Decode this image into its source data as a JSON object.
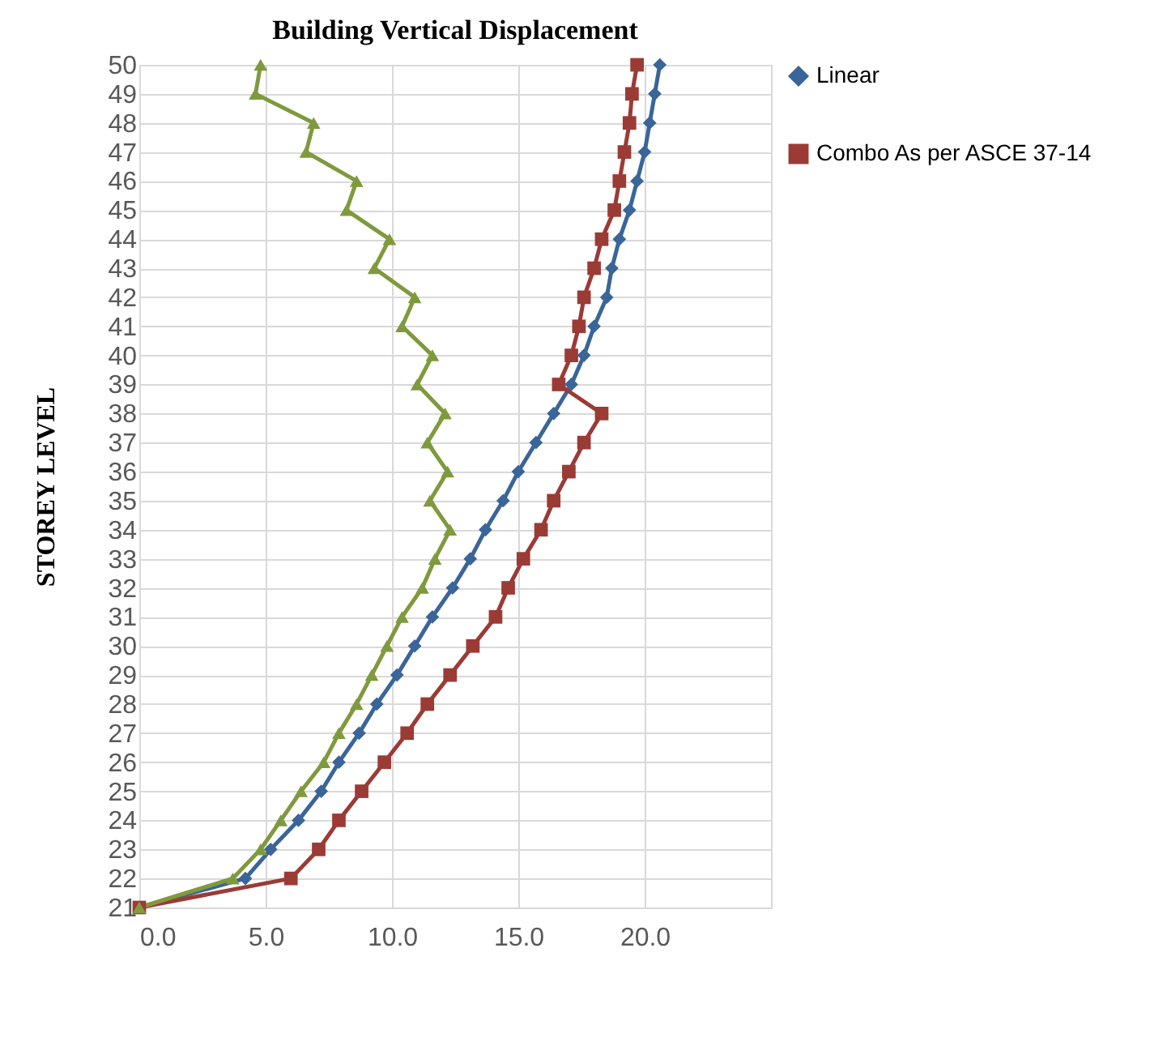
{
  "chart_data": {
    "type": "line",
    "orientation": "horizontal",
    "title": "Building Vertical Displacement",
    "ylabel": "STOREY LEVEL",
    "categories": [
      "50",
      "49",
      "48",
      "47",
      "46",
      "45",
      "44",
      "43",
      "42",
      "41",
      "40",
      "39",
      "38",
      "37",
      "36",
      "35",
      "34",
      "33",
      "32",
      "31",
      "30",
      "29",
      "28",
      "27",
      "26",
      "25",
      "24",
      "23",
      "22",
      "21"
    ],
    "series": [
      {
        "name": "Linear",
        "color": "#3a6598",
        "marker": "diamond",
        "values": [
          20.6,
          20.4,
          20.2,
          20.0,
          19.7,
          19.4,
          19.0,
          18.7,
          18.5,
          18.0,
          17.6,
          17.1,
          16.4,
          15.7,
          15.0,
          14.4,
          13.7,
          13.1,
          12.4,
          11.6,
          10.9,
          10.2,
          9.4,
          8.7,
          7.9,
          7.2,
          6.3,
          5.2,
          4.2,
          0
        ]
      },
      {
        "name": "Combo As per ASCE 37-14",
        "color": "#9b3b36",
        "marker": "square",
        "values": [
          19.7,
          19.5,
          19.4,
          19.2,
          19.0,
          18.8,
          18.3,
          18.0,
          17.6,
          17.4,
          17.1,
          16.6,
          18.3,
          17.6,
          17.0,
          16.4,
          15.9,
          15.2,
          14.6,
          14.1,
          13.2,
          12.3,
          11.4,
          10.6,
          9.7,
          8.8,
          7.9,
          7.1,
          6.0,
          0
        ]
      },
      {
        "color": "#7f9a3d",
        "marker": "triangle",
        "values": [
          4.8,
          4.6,
          6.9,
          6.6,
          8.6,
          8.2,
          9.9,
          9.3,
          10.9,
          10.4,
          11.6,
          11.0,
          12.1,
          11.4,
          12.2,
          11.5,
          12.3,
          11.7,
          11.2,
          10.4,
          9.8,
          9.2,
          8.6,
          7.9,
          7.3,
          6.4,
          5.6,
          4.8,
          3.7,
          0
        ]
      }
    ],
    "xlim": [
      0,
      25
    ],
    "xticks": [
      {
        "value": 0,
        "label": "0.0"
      },
      {
        "value": 5,
        "label": "5.0"
      },
      {
        "value": 10,
        "label": "10.0"
      },
      {
        "value": 15,
        "label": "15.0"
      },
      {
        "value": 20,
        "label": "20.0"
      },
      {
        "value": 25,
        "label": null
      }
    ],
    "grid": true,
    "legend": "right"
  }
}
